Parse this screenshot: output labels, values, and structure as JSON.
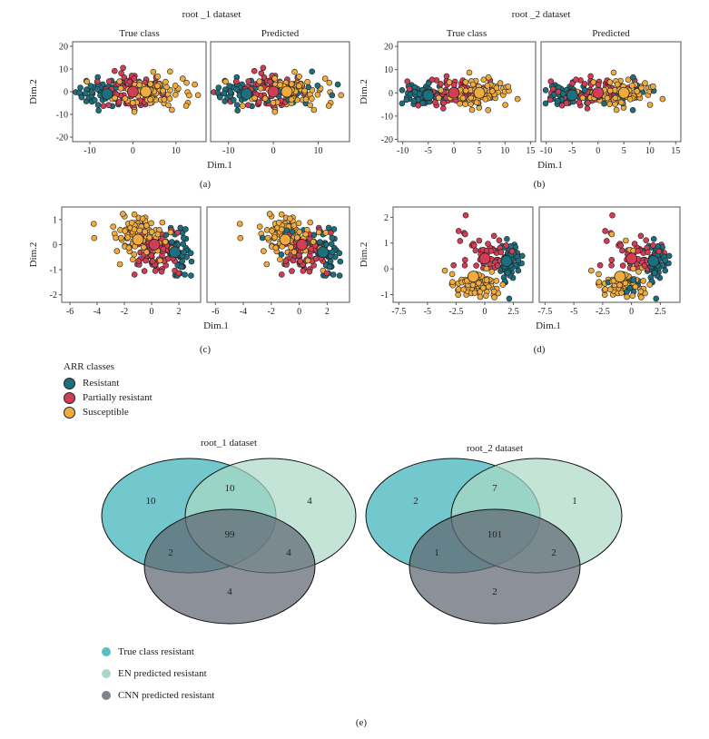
{
  "colors": {
    "resistant": "#1b6f7e",
    "partially_resistant": "#d23c55",
    "susceptible": "#f1ab3d",
    "venn_true": "#5bbec4",
    "venn_en": "#a9d9c5",
    "venn_cnn": "#7d838d"
  },
  "group_titles": {
    "a_b_left": "root _1 dataset",
    "a_b_right": "root _2 dataset"
  },
  "legend": {
    "title": "ARR classes",
    "items": [
      "Resistant",
      "Partially resistant",
      "Susceptible"
    ]
  },
  "chart_data": [
    {
      "type": "scatter",
      "panel": "(a)",
      "subplots": [
        "True class",
        "Predicted"
      ],
      "xlabel": "Dim.1",
      "ylabel": "Dim.2",
      "xticks": [
        -10,
        0,
        10
      ],
      "yticks": [
        -20,
        -10,
        0,
        10,
        20
      ],
      "xlim": [
        -14,
        17
      ],
      "ylim": [
        -22,
        22
      ],
      "series": [
        {
          "name": "Resistant",
          "center": [
            -7,
            0
          ],
          "spread": [
            3.5,
            4.5
          ],
          "count": 55,
          "centroid": [
            -6,
            -1
          ]
        },
        {
          "name": "Partially resistant",
          "center": [
            0,
            0
          ],
          "spread": [
            4,
            6
          ],
          "count": 90,
          "centroid": [
            0,
            0
          ]
        },
        {
          "name": "Susceptible",
          "center": [
            5,
            0
          ],
          "spread": [
            5,
            5.5
          ],
          "count": 90,
          "centroid": [
            3,
            0
          ]
        }
      ]
    },
    {
      "type": "scatter",
      "panel": "(b)",
      "subplots": [
        "True class",
        "Predicted"
      ],
      "xlabel": "Dim.1",
      "ylabel": "Dim.2",
      "xticks": [
        -10,
        -5,
        0,
        5,
        10,
        15
      ],
      "yticks": [
        -20,
        -10,
        0,
        10,
        20
      ],
      "xlim": [
        -11,
        16
      ],
      "ylim": [
        -21,
        22
      ],
      "series": [
        {
          "name": "Resistant",
          "center": [
            -6,
            -1
          ],
          "spread": [
            2.5,
            3
          ],
          "count": 70,
          "centroid": [
            -5,
            -1
          ]
        },
        {
          "name": "Partially resistant",
          "center": [
            -1,
            0
          ],
          "spread": [
            3,
            5
          ],
          "count": 60,
          "centroid": [
            0,
            0
          ]
        },
        {
          "name": "Susceptible",
          "center": [
            5,
            0
          ],
          "spread": [
            3.5,
            5
          ],
          "count": 80,
          "centroid": [
            5,
            0
          ]
        }
      ]
    },
    {
      "type": "scatter",
      "panel": "(c)",
      "subplots": [
        "",
        ""
      ],
      "xlabel": "Dim.1",
      "ylabel": "Dim.2",
      "xticks": [
        -6,
        -4,
        -2,
        0,
        2
      ],
      "yticks": [
        -2,
        -1,
        0,
        1
      ],
      "xlim": [
        -6.6,
        3.6
      ],
      "ylim": [
        -2.3,
        1.5
      ],
      "series": [
        {
          "name": "Resistant",
          "center": [
            2,
            -0.4
          ],
          "spread": [
            0.5,
            0.6
          ],
          "count": 60,
          "centroid": [
            1.7,
            -0.3
          ]
        },
        {
          "name": "Partially resistant",
          "center": [
            0.3,
            -0.3
          ],
          "spread": [
            1,
            0.6
          ],
          "count": 90,
          "centroid": [
            0.2,
            0
          ]
        },
        {
          "name": "Susceptible",
          "center": [
            -1,
            0.4
          ],
          "spread": [
            1.3,
            0.5
          ],
          "count": 90,
          "centroid": [
            -1,
            0.2
          ]
        }
      ]
    },
    {
      "type": "scatter",
      "panel": "(d)",
      "subplots": [
        "",
        ""
      ],
      "xlabel": "Dim.1",
      "ylabel": "Dim.2",
      "xticks": [
        -7.5,
        -5.0,
        -2.5,
        0.0,
        2.5
      ],
      "yticks": [
        -1,
        0,
        1,
        2
      ],
      "xlim": [
        -8,
        4.2
      ],
      "ylim": [
        -1.3,
        2.4
      ],
      "series": [
        {
          "name": "Resistant",
          "center": [
            2.2,
            0.2
          ],
          "spread": [
            0.5,
            0.6
          ],
          "count": 60,
          "centroid": [
            1.9,
            0.3
          ]
        },
        {
          "name": "Partially resistant",
          "center": [
            0,
            0.6
          ],
          "spread": [
            1.2,
            0.6
          ],
          "count": 50,
          "centroid": [
            0,
            0.4
          ]
        },
        {
          "name": "Susceptible",
          "center": [
            -1,
            -0.6
          ],
          "spread": [
            1.2,
            0.35
          ],
          "count": 90,
          "centroid": [
            -1,
            -0.3
          ]
        }
      ]
    }
  ],
  "panel_labels": [
    "(a)",
    "(b)",
    "(c)",
    "(d)",
    "(e)"
  ],
  "venn": [
    {
      "title": "root_1 dataset",
      "regions": {
        "true_only": "10",
        "true_en": "10",
        "en_only": "4",
        "all": "99",
        "true_cnn": "2",
        "en_cnn": "4",
        "cnn_only": "4"
      }
    },
    {
      "title": "root_2 dataset",
      "regions": {
        "true_only": "2",
        "true_en": "7",
        "en_only": "1",
        "all": "101",
        "true_cnn": "1",
        "en_cnn": "2",
        "cnn_only": "2"
      }
    }
  ],
  "venn_legend": [
    "True class resistant",
    "EN predicted resistant",
    "CNN predicted resistant"
  ]
}
